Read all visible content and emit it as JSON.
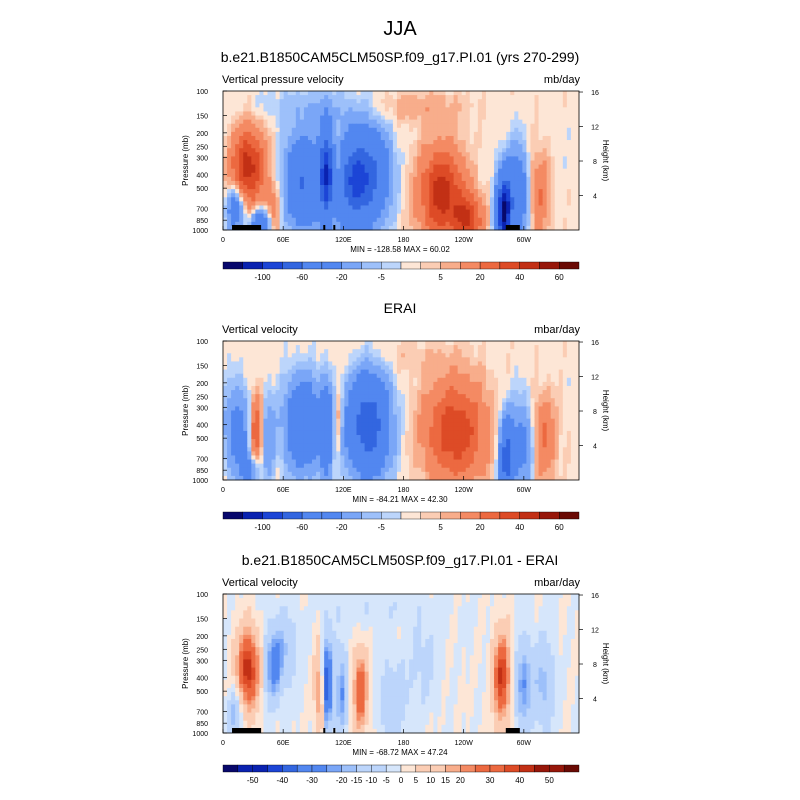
{
  "page": {
    "main_title": "JJA"
  },
  "chart_data": [
    {
      "type": "heatmap",
      "title": "b.e21.B1850CAM5CLM50SP.f09_g17.PI.01 (yrs 270-299)",
      "variable_label": "Vertical pressure velocity",
      "units": "mb/day",
      "stats": "MIN = -128.58   MAX =  60.02",
      "min": -128.58,
      "max": 60.02,
      "ylabel": "Pressure (mb)",
      "ylabel_right": "Height (km)",
      "pressure_ticks": [
        "100",
        "150",
        "200",
        "250",
        "300",
        "400",
        "500",
        "700",
        "850",
        "1000"
      ],
      "height_ticks": [
        "16",
        "12",
        "8",
        "4"
      ],
      "lon_ticks": [
        "0",
        "60E",
        "120E",
        "180",
        "120W",
        "60W"
      ],
      "colorbar_levels": [
        -120,
        -100,
        -80,
        -60,
        -40,
        -20,
        -10,
        -5,
        -2,
        2,
        5,
        10,
        20,
        30,
        40,
        50,
        60
      ],
      "colorbar_labels": [
        "-100",
        "-60",
        "-20",
        "-5",
        "5",
        "20",
        "40",
        "60"
      ],
      "features": [
        {
          "lon": 25,
          "p": 350,
          "amp": 45,
          "wlon": 12,
          "wlogp": 0.45
        },
        {
          "lon": 12,
          "p": 700,
          "amp": -40,
          "wlon": 6,
          "wlogp": 0.25
        },
        {
          "lon": 37,
          "p": 900,
          "amp": -55,
          "wlon": 6,
          "wlogp": 0.15
        },
        {
          "lon": 50,
          "p": 700,
          "amp": 15,
          "wlon": 5,
          "wlogp": 0.3
        },
        {
          "lon": 80,
          "p": 450,
          "amp": -60,
          "wlon": 12,
          "wlogp": 0.5
        },
        {
          "lon": 103,
          "p": 400,
          "amp": -90,
          "wlon": 5,
          "wlogp": 0.55
        },
        {
          "lon": 113,
          "p": 350,
          "amp": 20,
          "wlon": 3,
          "wlogp": 0.4
        },
        {
          "lon": 130,
          "p": 450,
          "amp": -75,
          "wlon": 12,
          "wlogp": 0.55
        },
        {
          "lon": 150,
          "p": 400,
          "amp": -50,
          "wlon": 12,
          "wlogp": 0.5
        },
        {
          "lon": 218,
          "p": 550,
          "amp": 45,
          "wlon": 16,
          "wlogp": 0.55
        },
        {
          "lon": 245,
          "p": 850,
          "amp": 35,
          "wlon": 10,
          "wlogp": 0.3
        },
        {
          "lon": 280,
          "p": 750,
          "amp": -120,
          "wlon": 5,
          "wlogp": 0.4
        },
        {
          "lon": 293,
          "p": 550,
          "amp": -45,
          "wlon": 8,
          "wlogp": 0.5
        },
        {
          "lon": 315,
          "p": 550,
          "amp": 20,
          "wlon": 8,
          "wlogp": 0.5
        },
        {
          "lon": 190,
          "p": 130,
          "amp": 8,
          "wlon": 40,
          "wlogp": 0.2
        },
        {
          "lon": 90,
          "p": 130,
          "amp": -8,
          "wlon": 40,
          "wlogp": 0.2
        }
      ],
      "land_bars": [
        [
          9,
          38
        ],
        [
          100,
          101
        ],
        [
          110,
          111
        ],
        [
          282,
          296
        ]
      ]
    },
    {
      "type": "heatmap",
      "title": "ERAI",
      "variable_label": "Vertical velocity",
      "units": "mbar/day",
      "stats": "MIN = -84.21   MAX =  42.30",
      "min": -84.21,
      "max": 42.3,
      "ylabel": "Pressure (mb)",
      "ylabel_right": "Height (km)",
      "pressure_ticks": [
        "100",
        "150",
        "200",
        "250",
        "300",
        "400",
        "500",
        "700",
        "850",
        "1000"
      ],
      "height_ticks": [
        "16",
        "12",
        "8",
        "4"
      ],
      "lon_ticks": [
        "0",
        "60E",
        "120E",
        "180",
        "120W",
        "60W"
      ],
      "colorbar_levels": [
        -120,
        -100,
        -80,
        -60,
        -40,
        -20,
        -10,
        -5,
        -2,
        2,
        5,
        10,
        20,
        30,
        40,
        50,
        60
      ],
      "colorbar_labels": [
        "-100",
        "-60",
        "-20",
        "-5",
        "5",
        "20",
        "40",
        "60"
      ],
      "features": [
        {
          "lon": 15,
          "p": 450,
          "amp": -30,
          "wlon": 9,
          "wlogp": 0.5
        },
        {
          "lon": 33,
          "p": 450,
          "amp": 32,
          "wlon": 5,
          "wlogp": 0.45
        },
        {
          "lon": 27,
          "p": 850,
          "amp": -30,
          "wlon": 6,
          "wlogp": 0.2
        },
        {
          "lon": 45,
          "p": 500,
          "amp": -20,
          "wlon": 5,
          "wlogp": 0.5
        },
        {
          "lon": 80,
          "p": 400,
          "amp": -55,
          "wlon": 12,
          "wlogp": 0.5
        },
        {
          "lon": 103,
          "p": 450,
          "amp": -45,
          "wlon": 4,
          "wlogp": 0.55
        },
        {
          "lon": 115,
          "p": 350,
          "amp": 12,
          "wlon": 3,
          "wlogp": 0.4
        },
        {
          "lon": 145,
          "p": 400,
          "amp": -80,
          "wlon": 14,
          "wlogp": 0.55
        },
        {
          "lon": 232,
          "p": 450,
          "amp": 38,
          "wlon": 22,
          "wlogp": 0.6
        },
        {
          "lon": 283,
          "p": 700,
          "amp": -75,
          "wlon": 5,
          "wlogp": 0.45
        },
        {
          "lon": 300,
          "p": 550,
          "amp": -30,
          "wlon": 8,
          "wlogp": 0.5
        },
        {
          "lon": 318,
          "p": 500,
          "amp": 22,
          "wlon": 10,
          "wlogp": 0.5
        },
        {
          "lon": 180,
          "p": 130,
          "amp": 4,
          "wlon": 40,
          "wlogp": 0.2
        }
      ],
      "land_bars": []
    },
    {
      "type": "heatmap",
      "title": "b.e21.B1850CAM5CLM50SP.f09_g17.PI.01 - ERAI",
      "variable_label": "Vertical velocity",
      "units": "mbar/day",
      "stats": "MIN = -68.72   MAX =  47.24",
      "min": -68.72,
      "max": 47.24,
      "ylabel": "Pressure (mb)",
      "ylabel_right": "Height (km)",
      "pressure_ticks": [
        "100",
        "150",
        "200",
        "250",
        "300",
        "400",
        "500",
        "700",
        "850",
        "1000"
      ],
      "height_ticks": [
        "16",
        "12",
        "8",
        "4"
      ],
      "lon_ticks": [
        "0",
        "60E",
        "120E",
        "180",
        "120W",
        "60W"
      ],
      "colorbar_levels": [
        -60,
        -50,
        -45,
        -40,
        -35,
        -30,
        -25,
        -20,
        -15,
        -10,
        -5,
        0,
        5,
        10,
        15,
        20,
        25,
        30,
        35,
        40,
        45,
        50,
        55
      ],
      "colorbar_labels": [
        "-50",
        "-40",
        "-30",
        "-20",
        "-15",
        "-10",
        "-5",
        "0",
        "5",
        "10",
        "15",
        "20",
        "30",
        "40",
        "50"
      ],
      "features": [
        {
          "lon": 25,
          "p": 350,
          "amp": 45,
          "wlon": 8,
          "wlogp": 0.45
        },
        {
          "lon": 12,
          "p": 700,
          "amp": -20,
          "wlon": 5,
          "wlogp": 0.3
        },
        {
          "lon": 50,
          "p": 350,
          "amp": -25,
          "wlon": 6,
          "wlogp": 0.4
        },
        {
          "lon": 60,
          "p": 250,
          "amp": -15,
          "wlon": 10,
          "wlogp": 0.4
        },
        {
          "lon": 98,
          "p": 500,
          "amp": 35,
          "wlon": 4,
          "wlogp": 0.55
        },
        {
          "lon": 103,
          "p": 450,
          "amp": -55,
          "wlon": 4,
          "wlogp": 0.55
        },
        {
          "lon": 118,
          "p": 500,
          "amp": -25,
          "wlon": 4,
          "wlogp": 0.5
        },
        {
          "lon": 137,
          "p": 500,
          "amp": 35,
          "wlon": 5,
          "wlogp": 0.45
        },
        {
          "lon": 170,
          "p": 600,
          "amp": -12,
          "wlon": 10,
          "wlogp": 0.5
        },
        {
          "lon": 200,
          "p": 300,
          "amp": -8,
          "wlon": 10,
          "wlogp": 0.5
        },
        {
          "lon": 278,
          "p": 400,
          "amp": 42,
          "wlon": 6,
          "wlogp": 0.5
        },
        {
          "lon": 300,
          "p": 450,
          "amp": -25,
          "wlon": 6,
          "wlogp": 0.5
        },
        {
          "lon": 320,
          "p": 450,
          "amp": -18,
          "wlon": 7,
          "wlogp": 0.5
        },
        {
          "lon": 150,
          "p": 130,
          "amp": -4,
          "wlon": 40,
          "wlogp": 0.2
        }
      ],
      "land_bars": [
        [
          9,
          38
        ],
        [
          100,
          101
        ],
        [
          110,
          111
        ],
        [
          282,
          296
        ]
      ]
    }
  ]
}
